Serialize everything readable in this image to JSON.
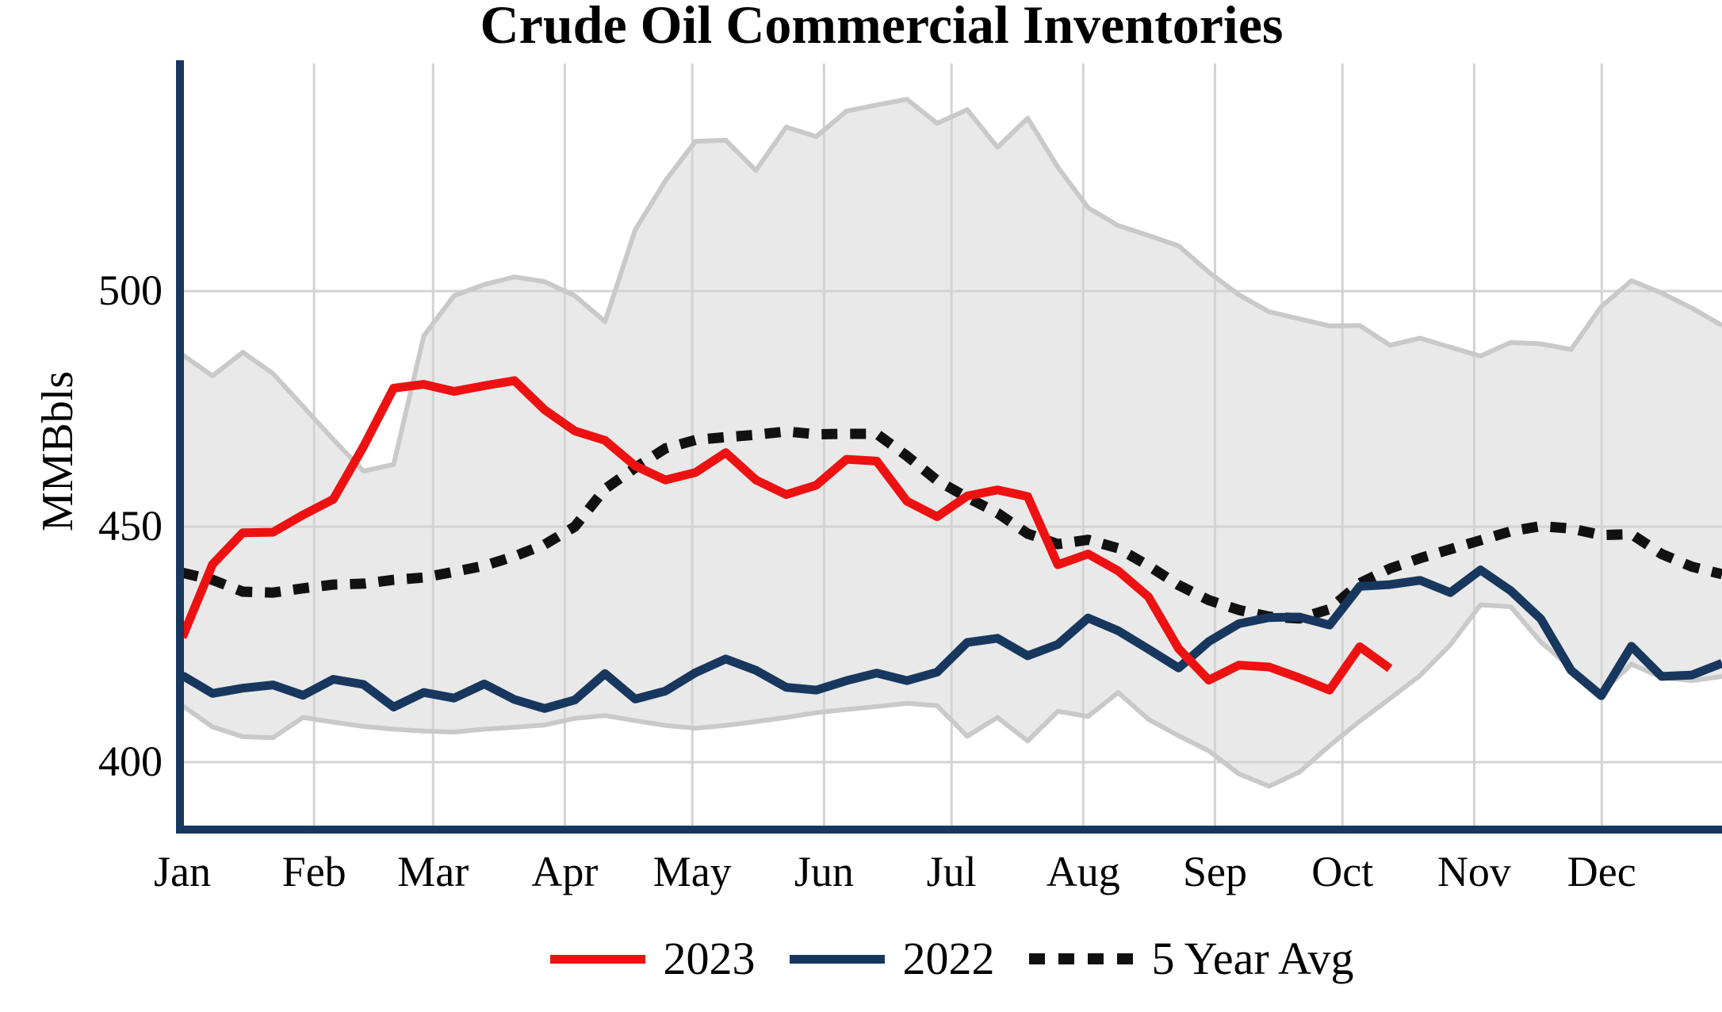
{
  "title": "Crude Oil Commercial Inventories",
  "y_axis": {
    "label": "MMBbls",
    "ticks": [
      500,
      450,
      400
    ]
  },
  "x_axis": {
    "months": [
      "Jan",
      "Feb",
      "Mar",
      "Apr",
      "May",
      "Jun",
      "Jul",
      "Aug",
      "Sep",
      "Oct",
      "Nov",
      "Dec"
    ]
  },
  "legend": {
    "items": [
      {
        "label": "2023",
        "swatch": "line",
        "color": "#ee1111"
      },
      {
        "label": "2022",
        "swatch": "line",
        "color": "#17375e"
      },
      {
        "label": "5 Year Avg",
        "swatch": "dotted",
        "color": "#111111"
      }
    ]
  },
  "colors": {
    "red": "#ee1111",
    "navy": "#17375e",
    "dotted": "#111111",
    "band_fill": "#e9e9e9",
    "band_edge": "#c9c9c9",
    "gridline": "#d3d3d3",
    "axis": "#17375e"
  },
  "chart_data": {
    "type": "line",
    "title": "Crude Oil Commercial Inventories",
    "xlabel": "",
    "ylabel": "MMBbls",
    "x_unit": "week_of_year",
    "weeks": 52,
    "ylim": [
      386,
      548
    ],
    "yticks": [
      400,
      450,
      500
    ],
    "grid": true,
    "legend_position": "bottom",
    "series": [
      {
        "name": "2023",
        "style": "solid",
        "color": "#ee1111",
        "values": [
          426.5,
          442.0,
          448.7,
          448.8,
          452.5,
          455.8,
          467.0,
          479.4,
          480.2,
          478.7,
          479.9,
          481.0,
          474.8,
          470.3,
          468.3,
          462.9,
          459.9,
          461.5,
          465.7,
          459.9,
          456.8,
          458.8,
          464.3,
          463.9,
          455.4,
          452.1,
          456.5,
          457.8,
          456.4,
          441.9,
          444.2,
          440.6,
          435.1,
          424.1,
          417.4,
          420.6,
          420.2,
          417.9,
          415.3,
          424.5,
          419.9
        ]
      },
      {
        "name": "2022",
        "style": "solid",
        "color": "#17375e",
        "values": [
          418.4,
          414.6,
          415.7,
          416.4,
          414.2,
          417.6,
          416.5,
          411.7,
          414.8,
          413.6,
          416.6,
          413.3,
          411.4,
          413.2,
          418.8,
          413.4,
          415.1,
          419.0,
          421.9,
          419.5,
          415.9,
          415.3,
          417.3,
          418.9,
          417.3,
          419.1,
          425.4,
          426.3,
          422.6,
          425.0,
          430.6,
          427.9,
          424.0,
          420.0,
          425.6,
          429.4,
          430.7,
          430.8,
          429.1,
          437.3,
          437.7,
          438.6,
          436.0,
          440.8,
          436.4,
          430.4,
          419.5,
          414.1,
          424.6,
          418.2,
          418.5,
          421.0
        ]
      },
      {
        "name": "5 Year Avg",
        "style": "dotted",
        "color": "#111111",
        "values": [
          440.2,
          438.7,
          436.2,
          436.0,
          436.9,
          437.7,
          437.9,
          438.7,
          439.2,
          440.4,
          441.7,
          443.7,
          446.2,
          450.0,
          458.0,
          462.5,
          466.6,
          468.4,
          469.0,
          469.5,
          470.2,
          469.6,
          469.7,
          469.7,
          465.0,
          459.8,
          456.2,
          452.9,
          448.5,
          446.3,
          447.2,
          445.4,
          441.7,
          437.6,
          434.4,
          432.3,
          430.9,
          430.5,
          432.5,
          438.0,
          441.1,
          443.3,
          445.2,
          447.1,
          449.0,
          450.1,
          449.6,
          448.2,
          448.4,
          444.2,
          441.5,
          439.9
        ]
      }
    ],
    "band": {
      "name": "5 Year Range",
      "fill": "#e9e9e9",
      "upper": [
        486.5,
        482.0,
        487.0,
        482.5,
        475.5,
        468.5,
        461.8,
        463.2,
        490.5,
        499.0,
        501.4,
        503.0,
        502.0,
        499.0,
        493.5,
        513.0,
        523.4,
        531.8,
        532.0,
        525.6,
        534.8,
        532.8,
        538.2,
        539.5,
        540.7,
        535.6,
        538.5,
        530.5,
        536.7,
        526.3,
        517.7,
        513.9,
        511.8,
        509.6,
        504.0,
        499.2,
        495.6,
        494.1,
        492.6,
        492.7,
        488.5,
        490.0,
        488.1,
        486.2,
        489.1,
        488.8,
        487.6,
        496.7,
        502.2,
        499.6,
        496.4,
        492.7
      ],
      "lower": [
        412.0,
        407.5,
        405.4,
        405.2,
        409.5,
        408.5,
        407.6,
        407.0,
        406.6,
        406.4,
        407.0,
        407.4,
        407.9,
        409.3,
        409.9,
        408.8,
        407.8,
        407.2,
        407.8,
        408.6,
        409.5,
        410.5,
        411.2,
        411.8,
        412.5,
        412.0,
        405.5,
        409.5,
        404.5,
        410.8,
        409.7,
        414.8,
        409.1,
        405.6,
        402.4,
        397.5,
        394.9,
        397.9,
        403.5,
        408.7,
        413.5,
        418.4,
        424.9,
        433.4,
        433.0,
        425.5,
        420.0,
        414.8,
        420.8,
        418.0,
        417.3,
        418.2
      ]
    }
  }
}
